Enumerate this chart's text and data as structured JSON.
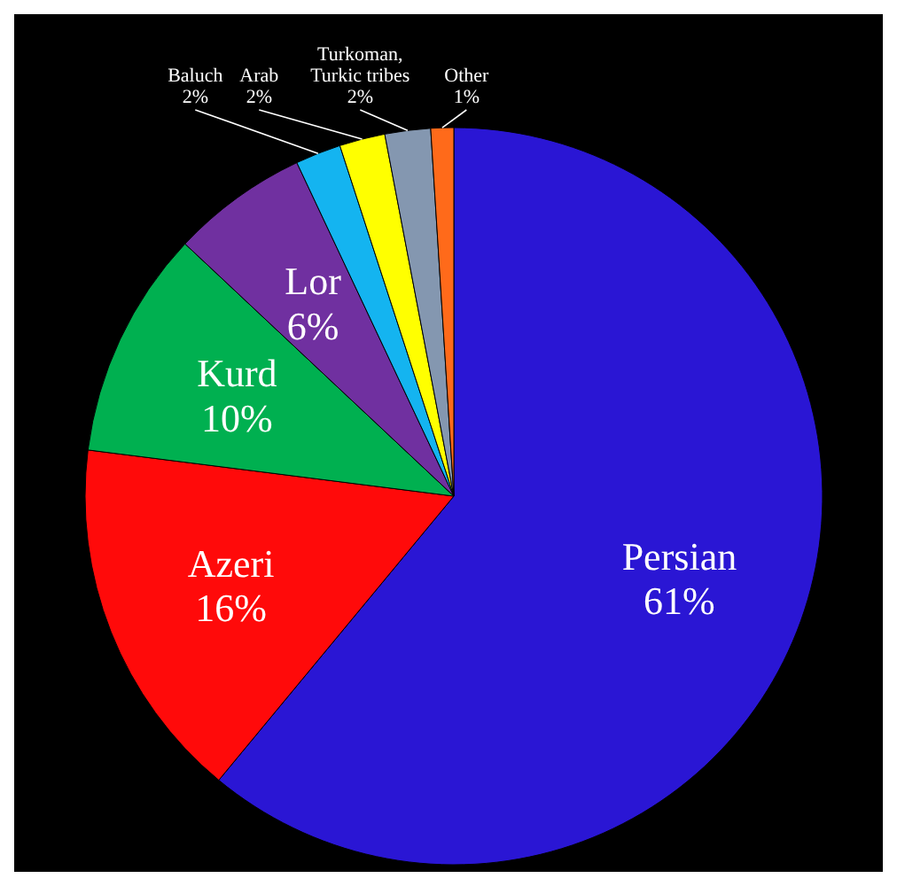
{
  "chart_data": {
    "type": "pie",
    "categories": [
      "Persian",
      "Azeri",
      "Kurd",
      "Lor",
      "Baluch",
      "Arab",
      "Turkoman, Turkic tribes",
      "Other"
    ],
    "values": [
      61,
      16,
      10,
      6,
      2,
      2,
      2,
      1
    ],
    "colors": [
      "#2a16d4",
      "#ff0a0a",
      "#00b050",
      "#7030a0",
      "#14b4f0",
      "#ffff00",
      "#8497b0",
      "#ff6a1a"
    ],
    "value_labels": [
      "61%",
      "16%",
      "10%",
      "6%",
      "2%",
      "2%",
      "2%",
      "1%"
    ]
  }
}
